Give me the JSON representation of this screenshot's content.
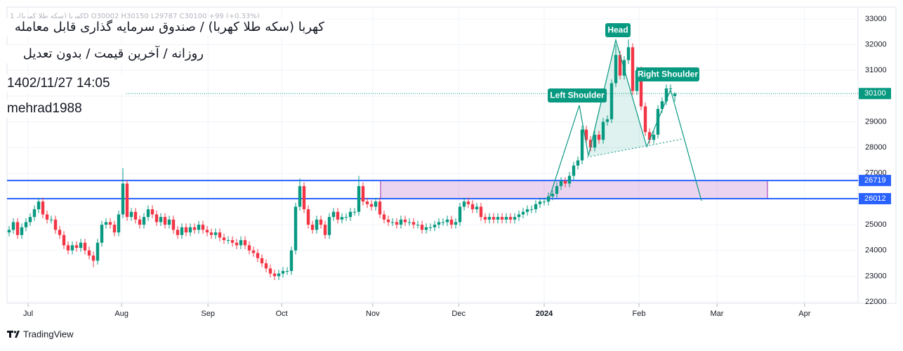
{
  "header": {
    "legend": "کهربا (سکه طلا کهربا)، 1D  O30002  H30150  L29787  C30100  +99 (+0.33%)",
    "title": "کهربا (سکه طلا کهربا) / صندوق سرمایه گذاری قابل معامله",
    "subtitle": "روزانه / آخرین قیمت / بدون تعدیل",
    "timestamp": "1402/11/27 14:05",
    "author": "mehrad1988"
  },
  "chart_data": {
    "type": "candlestick",
    "open": [
      24700,
      24800,
      25100,
      24600,
      24900,
      25100,
      25300,
      25600,
      25900,
      25400,
      25200,
      25200,
      24800,
      24600,
      24200,
      24000,
      24200,
      24100,
      24300,
      24000,
      23800,
      23600,
      24300,
      25000,
      25100,
      25000,
      24700,
      25400,
      26600,
      25300,
      25500,
      25200,
      25000,
      25300,
      25600,
      25400,
      25100,
      25300,
      25000,
      25200,
      24800,
      24600,
      24900,
      24700,
      24900,
      24800,
      25000,
      24800,
      24700,
      24600,
      24700,
      24500,
      24400,
      24400,
      24300,
      24200,
      24400,
      24200,
      24000,
      23900,
      23700,
      23500,
      23300,
      23100,
      23000,
      23100,
      23200,
      23200,
      24000,
      25700,
      26500,
      25600,
      25000,
      24800,
      25200,
      25000,
      24600,
      25300,
      25500,
      25200,
      25300,
      25300,
      25500,
      25500,
      26500,
      25900,
      25800,
      25700,
      25900,
      25400,
      25200,
      25100,
      25100,
      25000,
      25200,
      25100,
      25100,
      25000,
      25000,
      24800,
      24900,
      24900,
      25000,
      25100,
      25100,
      25200,
      25000,
      25100,
      25700,
      25900,
      25800,
      25600,
      25700,
      25300,
      25200,
      25300,
      25200,
      25300,
      25200,
      25300,
      25200,
      25300,
      25400,
      25500,
      25600,
      25600,
      25800,
      25900,
      25900,
      26100,
      26200,
      26500,
      26700,
      26600,
      26900,
      27300,
      27500,
      28700,
      28300,
      28000,
      28500,
      28300,
      29000,
      29100,
      30500,
      31600,
      30800,
      31400,
      31900,
      30200,
      31000,
      29600,
      28600,
      28300,
      28500,
      29500,
      29800,
      30300,
      30002
    ],
    "high": [
      24950,
      25250,
      25250,
      25050,
      25250,
      25450,
      25750,
      26050,
      26050,
      25550,
      25350,
      25350,
      24950,
      24750,
      24350,
      24350,
      24350,
      24450,
      24450,
      24150,
      23950,
      24450,
      25150,
      25250,
      25250,
      25150,
      25550,
      27200,
      26750,
      25650,
      25650,
      25350,
      25450,
      25750,
      25750,
      25550,
      25450,
      25450,
      25350,
      25350,
      24950,
      25050,
      25050,
      25050,
      25050,
      25150,
      25150,
      24950,
      24850,
      24850,
      24850,
      24650,
      24550,
      24550,
      24450,
      24550,
      24550,
      24350,
      24150,
      24050,
      23850,
      23650,
      23450,
      23250,
      23250,
      23350,
      23350,
      24150,
      25850,
      26800,
      26650,
      25750,
      25150,
      25350,
      25350,
      25150,
      25450,
      25650,
      25650,
      25450,
      25450,
      25650,
      25650,
      26900,
      26650,
      26050,
      25950,
      26050,
      26050,
      25550,
      25350,
      25250,
      25250,
      25350,
      25350,
      25250,
      25250,
      25150,
      25150,
      25050,
      25050,
      25150,
      25250,
      25250,
      25350,
      25350,
      25250,
      25850,
      26050,
      26050,
      25950,
      25850,
      25850,
      25450,
      25450,
      25450,
      25450,
      25450,
      25450,
      25450,
      25450,
      25550,
      25650,
      25750,
      25750,
      25950,
      26050,
      26050,
      26250,
      26350,
      26650,
      26850,
      26850,
      27050,
      27450,
      27650,
      28850,
      28850,
      28450,
      28650,
      28650,
      29150,
      29250,
      30650,
      32000,
      31750,
      31550,
      32200,
      32050,
      31150,
      31150,
      29750,
      28750,
      28650,
      29650,
      29950,
      30450,
      30450,
      30150
    ],
    "low": [
      24550,
      24650,
      24450,
      24450,
      24750,
      24950,
      25150,
      25450,
      25250,
      25050,
      25050,
      24650,
      24450,
      24050,
      23850,
      23850,
      23950,
      23950,
      23850,
      23650,
      23350,
      23450,
      24150,
      24850,
      24850,
      24550,
      24550,
      25250,
      25150,
      25150,
      25050,
      24850,
      24850,
      25150,
      25250,
      24950,
      24950,
      24850,
      24850,
      24650,
      24450,
      24450,
      24550,
      24550,
      24650,
      24650,
      24650,
      24550,
      24450,
      24450,
      24350,
      24250,
      24250,
      24150,
      24050,
      24050,
      24050,
      23850,
      23750,
      23550,
      23350,
      23150,
      22950,
      22850,
      22850,
      22950,
      23050,
      23050,
      23850,
      25550,
      25450,
      24850,
      24650,
      24650,
      24850,
      24450,
      24450,
      25150,
      25050,
      25050,
      25150,
      25150,
      25350,
      25350,
      25750,
      25650,
      25550,
      25550,
      25250,
      25050,
      24950,
      24950,
      24850,
      24850,
      24950,
      24950,
      24850,
      24850,
      24650,
      24650,
      24750,
      24750,
      24850,
      24950,
      24950,
      24850,
      24850,
      24950,
      25550,
      25650,
      25450,
      25450,
      25150,
      25050,
      25050,
      25050,
      25050,
      25050,
      25050,
      25050,
      25050,
      25150,
      25250,
      25350,
      25450,
      25450,
      25650,
      25750,
      25750,
      25950,
      26050,
      26350,
      26450,
      26450,
      26750,
      27150,
      27350,
      28150,
      27850,
      27850,
      28150,
      28150,
      28850,
      28950,
      30350,
      30650,
      30650,
      31250,
      30050,
      30050,
      29450,
      28450,
      28150,
      28150,
      28350,
      29350,
      29650,
      30150,
      29787
    ],
    "close": [
      24800,
      25100,
      24600,
      24900,
      25100,
      25300,
      25600,
      25900,
      25400,
      25200,
      25200,
      24800,
      24600,
      24200,
      24000,
      24200,
      24100,
      24300,
      24000,
      23800,
      23600,
      24300,
      25000,
      25100,
      25000,
      24700,
      25400,
      26600,
      25300,
      25500,
      25200,
      25000,
      25300,
      25600,
      25400,
      25100,
      25300,
      25000,
      25200,
      24800,
      24600,
      24900,
      24700,
      24900,
      24800,
      25000,
      24800,
      24700,
      24600,
      24700,
      24500,
      24400,
      24400,
      24300,
      24200,
      24400,
      24200,
      24000,
      23900,
      23700,
      23500,
      23300,
      23100,
      23000,
      23100,
      23200,
      23200,
      24000,
      25700,
      26500,
      25600,
      25000,
      24800,
      25200,
      25000,
      24600,
      25300,
      25500,
      25200,
      25300,
      25300,
      25500,
      25500,
      26500,
      25900,
      25800,
      25700,
      25900,
      25400,
      25200,
      25100,
      25100,
      25000,
      25200,
      25100,
      25100,
      25000,
      25000,
      24800,
      24900,
      24900,
      25000,
      25100,
      25100,
      25200,
      25000,
      25100,
      25700,
      25900,
      25800,
      25600,
      25700,
      25300,
      25200,
      25300,
      25200,
      25300,
      25200,
      25300,
      25200,
      25300,
      25400,
      25500,
      25600,
      25600,
      25800,
      25900,
      25900,
      26100,
      26200,
      26500,
      26700,
      26600,
      26900,
      27300,
      27500,
      28700,
      28300,
      28000,
      28500,
      28300,
      29000,
      29100,
      30500,
      31600,
      30800,
      31400,
      31900,
      30200,
      31000,
      29600,
      28600,
      28300,
      28500,
      29500,
      29800,
      30300,
      30300,
      30100
    ],
    "up_color": "#089981",
    "down_color": "#f23645",
    "ylim": [
      22000,
      33000
    ],
    "yticks": [
      22000,
      23000,
      24000,
      25000,
      26000,
      27000,
      28000,
      29000,
      30000,
      31000,
      32000,
      33000
    ],
    "xlim": [
      -0.5,
      201.5
    ],
    "xticks": [
      {
        "value": 4.5,
        "label": "Jul"
      },
      {
        "value": 26.7,
        "label": "Aug"
      },
      {
        "value": 47.2,
        "label": "Sep"
      },
      {
        "value": 64.7,
        "label": "Oct"
      },
      {
        "value": 86.3,
        "label": "Nov"
      },
      {
        "value": 106.7,
        "label": "Dec"
      },
      {
        "value": 127,
        "label": "2024"
      },
      {
        "value": 149.5,
        "label": "Feb"
      },
      {
        "value": 168,
        "label": "Mar"
      },
      {
        "value": 188.8,
        "label": "Apr"
      }
    ],
    "levels": [
      {
        "value": 26719,
        "color": "#2962ff"
      },
      {
        "value": 26012,
        "color": "#2962ff"
      }
    ],
    "annotations": [
      "Left Shoulder",
      "Head",
      "Right Shoulder"
    ],
    "grid": true
  },
  "footer": {
    "brand": "TradingView"
  }
}
